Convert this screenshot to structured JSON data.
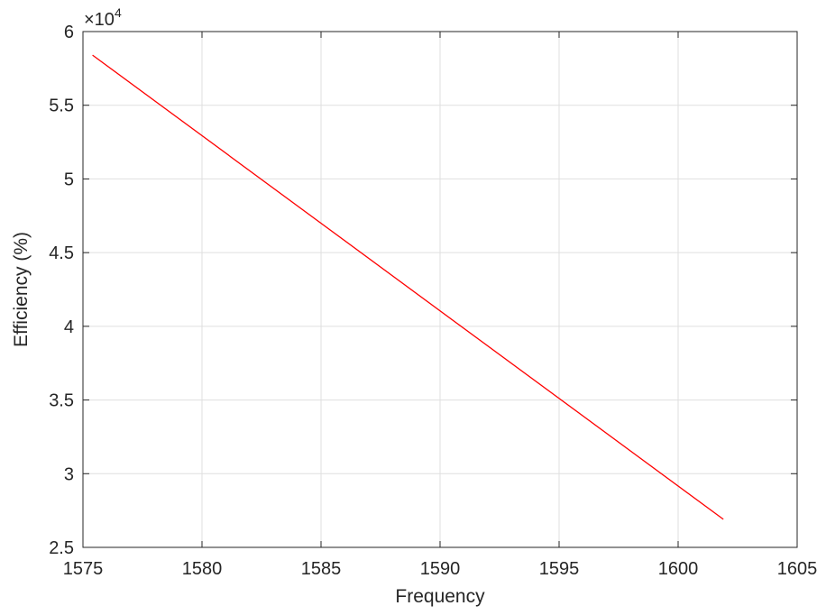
{
  "chart_data": {
    "type": "line",
    "title": "",
    "xlabel": "Frequency",
    "ylabel": "Efficiency (%)",
    "xlim": [
      1575,
      1605
    ],
    "ylim": [
      25000,
      60000
    ],
    "x_ticks": [
      1575,
      1580,
      1585,
      1590,
      1595,
      1600,
      1605
    ],
    "y_ticks": [
      25000,
      30000,
      35000,
      40000,
      45000,
      50000,
      55000,
      60000
    ],
    "y_tick_labels": [
      "2.5",
      "3",
      "3.5",
      "4",
      "4.5",
      "5",
      "5.5",
      "6"
    ],
    "x_tick_labels": [
      "1575",
      "1580",
      "1585",
      "1590",
      "1595",
      "1600",
      "1605"
    ],
    "y_exponent_label": "×10",
    "y_exponent_power": "4",
    "grid": true,
    "series": [
      {
        "color": "#ff0000",
        "x": [
          1575.4,
          1601.9
        ],
        "y": [
          58400,
          26900
        ]
      }
    ]
  }
}
